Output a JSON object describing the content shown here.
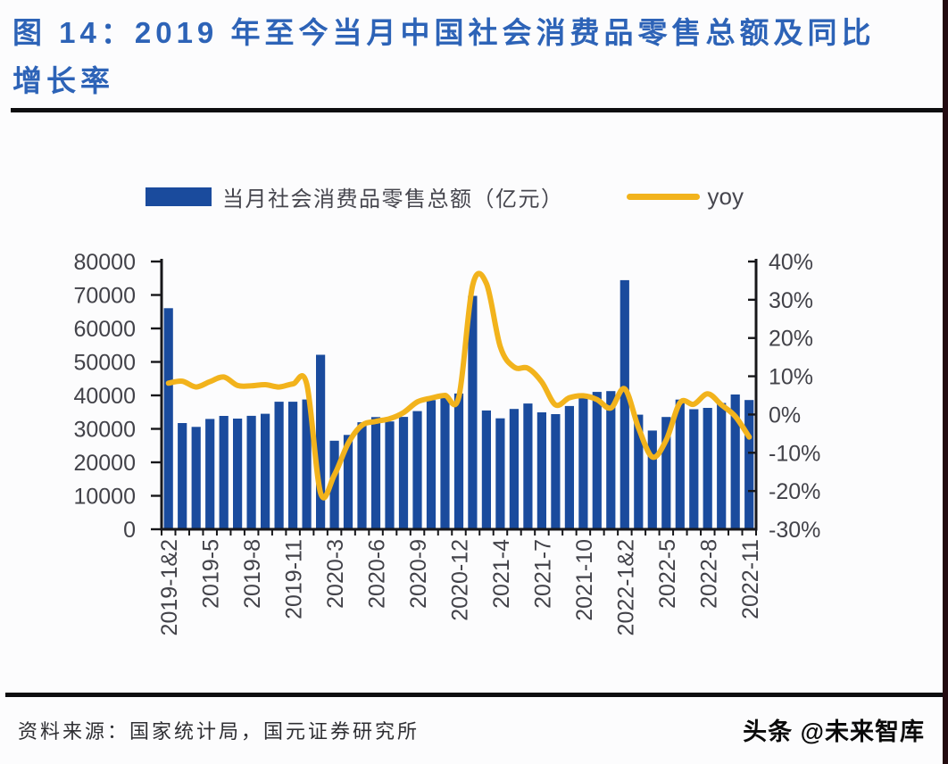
{
  "header": {
    "title_line1": "图 14：2019 年至今当月中国社会消费品零售总额及同比",
    "title_line2": "增长率",
    "title_color": "#2d63b7"
  },
  "footer": {
    "source": "资料来源：国家统计局，国元证券研究所",
    "watermark": "头条 @未来智库"
  },
  "chart_data": {
    "type": "bar",
    "combo": "bar+line-dual-axis",
    "title": "2019 年至今当月中国社会消费品零售总额及同比增长率",
    "grid": false,
    "legend_position": "top",
    "categories": [
      "2019-1&2",
      "2019-3",
      "2019-4",
      "2019-5",
      "2019-6",
      "2019-7",
      "2019-8",
      "2019-9",
      "2019-10",
      "2019-11",
      "2019-12",
      "2020-1&2",
      "2020-3",
      "2020-4",
      "2020-5",
      "2020-6",
      "2020-7",
      "2020-8",
      "2020-9",
      "2020-10",
      "2020-11",
      "2020-12",
      "2021-1&2",
      "2021-3",
      "2021-4",
      "2021-5",
      "2021-6",
      "2021-7",
      "2021-8",
      "2021-9",
      "2021-10",
      "2021-11",
      "2021-12",
      "2022-1&2",
      "2022-3",
      "2022-4",
      "2022-5",
      "2022-6",
      "2022-7",
      "2022-8",
      "2022-9",
      "2022-10",
      "2022-11"
    ],
    "x_tick_indices": [
      0,
      3,
      6,
      9,
      12,
      15,
      18,
      21,
      24,
      27,
      30,
      33,
      36,
      39,
      42
    ],
    "series": [
      {
        "name": "当月社会消费品零售总额（亿元）",
        "type": "bar",
        "axis": "left",
        "color": "#1a4b9d",
        "values": [
          66064,
          31726,
          30586,
          32956,
          33878,
          33073,
          33896,
          34495,
          38104,
          38094,
          38777,
          52130,
          26450,
          28178,
          31973,
          33526,
          32203,
          33571,
          35295,
          38576,
          39514,
          40566,
          69737,
          35484,
          33153,
          35945,
          37586,
          34925,
          34395,
          36833,
          40454,
          41043,
          41269,
          74426,
          34233,
          29483,
          33547,
          38742,
          35870,
          36258,
          37745,
          40271,
          38615
        ]
      },
      {
        "name": "yoy",
        "type": "line",
        "axis": "right",
        "color": "#f2b31c",
        "values": [
          8.2,
          8.7,
          7.2,
          8.6,
          9.8,
          7.6,
          7.5,
          7.8,
          7.2,
          8.0,
          8.0,
          -20.5,
          -15.8,
          -7.5,
          -2.8,
          -1.8,
          -1.1,
          0.5,
          3.3,
          4.3,
          5.0,
          4.6,
          33.8,
          34.2,
          17.7,
          12.4,
          12.1,
          8.5,
          2.5,
          4.4,
          4.9,
          3.9,
          1.7,
          6.7,
          -3.5,
          -11.1,
          -6.7,
          3.1,
          2.7,
          5.4,
          2.5,
          -0.5,
          -5.9
        ]
      }
    ],
    "left_axis": {
      "min": 0,
      "max": 80000,
      "step": 10000,
      "tick_labels": [
        "80000",
        "70000",
        "60000",
        "50000",
        "40000",
        "30000",
        "20000",
        "10000",
        "0"
      ]
    },
    "right_axis": {
      "min": -30,
      "max": 40,
      "step": 10,
      "unit": "%",
      "tick_labels": [
        "40%",
        "30%",
        "20%",
        "10%",
        "0%",
        "-10%",
        "-20%",
        "-30%"
      ]
    },
    "axis_text_color": "#424249",
    "axis_line_color": "#17171a"
  }
}
